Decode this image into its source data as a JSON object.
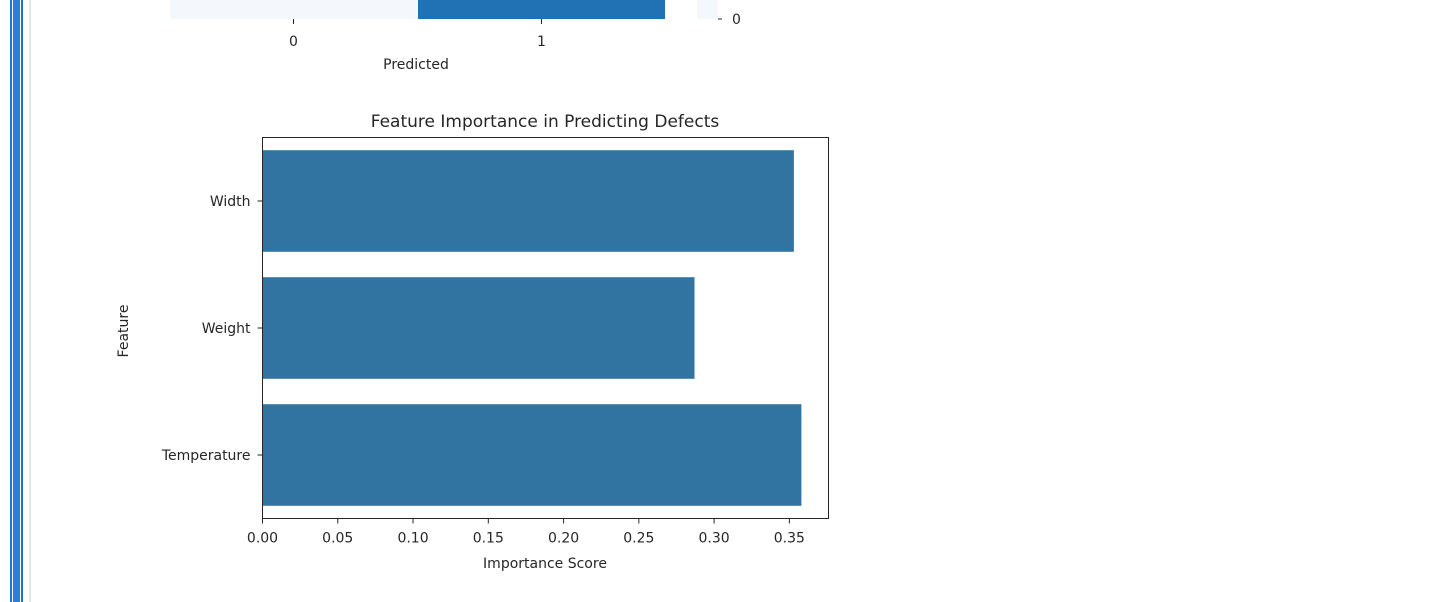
{
  "theme": {
    "accent": "#1976d2",
    "bar_color": "#3274a1",
    "cm_dark": "#2171b5",
    "cm_light": "#f4f8fd"
  },
  "confusion_matrix_fragment": {
    "xlabel": "Predicted",
    "tick_labels": [
      "0",
      "1"
    ],
    "colorbar_tick": "0"
  },
  "chart_data": {
    "type": "bar",
    "orientation": "horizontal",
    "title": "Feature Importance in Predicting Defects",
    "xlabel": "Importance Score",
    "ylabel": "Feature",
    "categories": [
      "Width",
      "Weight",
      "Temperature"
    ],
    "values": [
      0.353,
      0.287,
      0.358
    ],
    "xlim": [
      0,
      0.376
    ],
    "xticks": [
      0.0,
      0.05,
      0.1,
      0.15,
      0.2,
      0.25,
      0.3,
      0.35
    ],
    "xtick_labels": [
      "0.00",
      "0.05",
      "0.10",
      "0.15",
      "0.20",
      "0.25",
      "0.30",
      "0.35"
    ],
    "grid": false,
    "legend": "none"
  }
}
